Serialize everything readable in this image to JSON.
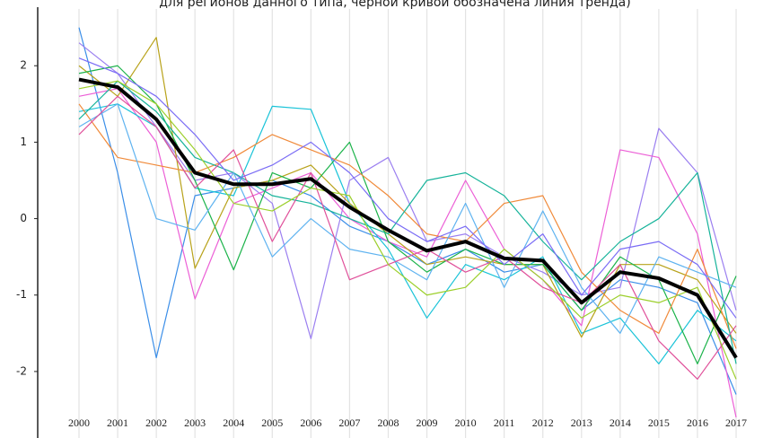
{
  "chart_data": {
    "type": "line",
    "title": "для регионов данного типа, черной кривой обозначена линия тренда)",
    "categories": [
      "2000",
      "2001",
      "2002",
      "2003",
      "2004",
      "2005",
      "2006",
      "2007",
      "2008",
      "2009",
      "2010",
      "2011",
      "2012",
      "2013",
      "2014",
      "2015",
      "2016",
      "2017"
    ],
    "ylim": [
      -2.87,
      2.86
    ],
    "yticks": [
      -2,
      -1,
      0,
      1,
      2
    ],
    "grid": true,
    "series": [
      {
        "color": "#3b8ee8",
        "values": [
          2.5,
          0.6,
          -1.82,
          0.3,
          0.4,
          0.5,
          0.3,
          -0.1,
          -0.3,
          -0.6,
          -0.4,
          -0.7,
          -0.6,
          -1.2,
          -0.8,
          -0.9,
          -1.1,
          -2.3
        ]
      },
      {
        "color": "#9b7ff0",
        "values": [
          2.3,
          1.9,
          1.2,
          0.5,
          0.6,
          0.2,
          -1.57,
          0.5,
          0.8,
          -0.3,
          -0.2,
          -0.5,
          -0.7,
          -1.0,
          -0.9,
          1.18,
          0.6,
          -1.2
        ]
      },
      {
        "color": "#ec5fd6",
        "values": [
          1.6,
          1.7,
          1.0,
          -1.05,
          0.2,
          0.4,
          0.6,
          0.0,
          -0.3,
          -0.5,
          0.5,
          -0.4,
          -0.8,
          -1.4,
          0.9,
          0.8,
          -0.2,
          -2.6
        ]
      },
      {
        "color": "#19c3d8",
        "values": [
          1.4,
          1.5,
          1.2,
          0.4,
          0.3,
          1.47,
          1.43,
          0.2,
          -0.4,
          -1.3,
          -0.6,
          -0.8,
          -0.5,
          -1.5,
          -1.3,
          -1.9,
          -1.2,
          -1.6
        ]
      },
      {
        "color": "#b8a21a",
        "values": [
          2.0,
          1.6,
          2.37,
          -0.65,
          0.4,
          0.5,
          0.7,
          0.2,
          -0.2,
          -0.6,
          -0.5,
          -0.6,
          -0.6,
          -1.55,
          -0.6,
          -0.6,
          -0.8,
          -1.5
        ]
      },
      {
        "color": "#1bb34a",
        "values": [
          1.9,
          2.0,
          1.5,
          0.5,
          -0.67,
          0.6,
          0.4,
          1.0,
          -0.3,
          -0.7,
          -0.4,
          -0.6,
          -0.6,
          -1.2,
          -0.5,
          -0.8,
          -1.9,
          -0.75
        ]
      },
      {
        "color": "#f08a3a",
        "values": [
          1.5,
          0.8,
          0.7,
          0.6,
          0.8,
          1.1,
          0.9,
          0.7,
          0.3,
          -0.2,
          -0.3,
          0.2,
          0.3,
          -0.7,
          -1.2,
          -1.5,
          -0.4,
          -1.7
        ]
      },
      {
        "color": "#16b39a",
        "values": [
          1.3,
          1.8,
          1.4,
          0.8,
          0.6,
          0.3,
          0.2,
          0.0,
          -0.2,
          0.5,
          0.6,
          0.3,
          -0.3,
          -0.8,
          -0.3,
          0.0,
          0.6,
          -1.9
        ]
      },
      {
        "color": "#5fb3f0",
        "values": [
          1.2,
          1.5,
          0.0,
          -0.15,
          0.6,
          -0.5,
          0.0,
          -0.4,
          -0.5,
          -0.8,
          0.2,
          -0.9,
          0.1,
          -0.9,
          -1.5,
          -0.5,
          -0.7,
          -0.9
        ]
      },
      {
        "color": "#e0509a",
        "values": [
          1.1,
          1.6,
          1.2,
          0.4,
          0.9,
          -0.3,
          0.6,
          -0.8,
          -0.6,
          -0.4,
          -0.7,
          -0.5,
          -0.9,
          -1.1,
          -0.6,
          -1.6,
          -2.1,
          -1.4
        ]
      },
      {
        "color": "#9ccf2b",
        "values": [
          1.7,
          1.8,
          1.5,
          0.9,
          0.2,
          0.1,
          0.4,
          0.3,
          -0.6,
          -1.0,
          -0.9,
          -0.4,
          -0.8,
          -1.3,
          -1.0,
          -1.1,
          -0.9,
          -2.1
        ]
      },
      {
        "color": "#7a6cf5",
        "values": [
          2.1,
          1.9,
          1.6,
          1.1,
          0.5,
          0.7,
          1.0,
          0.6,
          0.0,
          -0.3,
          -0.1,
          -0.6,
          -0.2,
          -1.0,
          -0.4,
          -0.3,
          -0.6,
          -1.3
        ]
      },
      {
        "color": "#000000",
        "width": 4,
        "values": [
          1.82,
          1.72,
          1.3,
          0.6,
          0.45,
          0.45,
          0.52,
          0.15,
          -0.15,
          -0.42,
          -0.3,
          -0.52,
          -0.55,
          -1.1,
          -0.7,
          -0.78,
          -1.0,
          -1.82
        ]
      }
    ]
  }
}
